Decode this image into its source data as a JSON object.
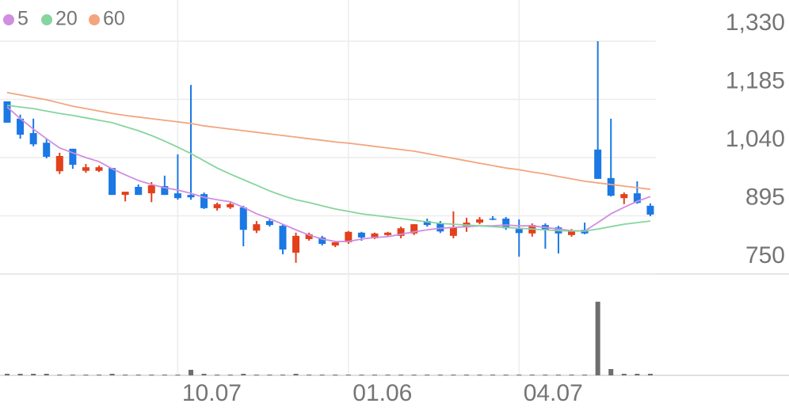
{
  "chart_data": [
    {
      "type": "candlestick",
      "categories": [
        null,
        null,
        null,
        null,
        null,
        null,
        null,
        null,
        null,
        null,
        null,
        null,
        null,
        "10.07",
        null,
        null,
        null,
        null,
        null,
        null,
        null,
        null,
        null,
        null,
        null,
        null,
        "01.06",
        null,
        null,
        null,
        null,
        null,
        null,
        null,
        null,
        null,
        null,
        null,
        null,
        "04.07",
        null,
        null,
        null,
        null,
        null,
        null,
        null,
        null,
        null,
        null
      ],
      "open": [
        1180,
        1137,
        1101,
        1077,
        1006,
        1062,
        1007,
        1007,
        1014,
        947,
        967,
        951,
        969,
        951,
        947,
        949,
        914,
        916,
        916,
        858,
        882,
        870,
        803,
        837,
        841,
        821,
        829,
        853,
        839,
        847,
        845,
        851,
        882,
        876,
        845,
        866,
        878,
        888,
        888,
        862,
        851,
        872,
        866,
        847,
        860,
        1060,
        989,
        939,
        951,
        920
      ],
      "high": [
        1180,
        1147,
        1137,
        1087,
        1052,
        1062,
        1024,
        1020,
        1014,
        955,
        973,
        979,
        995,
        1048,
        1221,
        953,
        928,
        928,
        920,
        882,
        886,
        874,
        853,
        853,
        845,
        831,
        857,
        855,
        853,
        855,
        868,
        874,
        888,
        882,
        906,
        890,
        892,
        894,
        892,
        886,
        876,
        876,
        870,
        862,
        878,
        1330,
        1137,
        953,
        981,
        926
      ],
      "low": [
        1127,
        1087,
        1068,
        1038,
        999,
        1012,
        1002,
        1004,
        947,
        931,
        947,
        929,
        947,
        935,
        935,
        912,
        908,
        912,
        819,
        852,
        868,
        799,
        778,
        833,
        821,
        817,
        825,
        833,
        837,
        845,
        839,
        847,
        868,
        852,
        839,
        855,
        874,
        884,
        860,
        793,
        843,
        813,
        801,
        843,
        849,
        987,
        943,
        924,
        925,
        894
      ],
      "close": [
        1127,
        1097,
        1073,
        1042,
        1044,
        1022,
        1016,
        1016,
        947,
        955,
        947,
        971,
        947,
        939,
        941,
        914,
        924,
        924,
        860,
        874,
        872,
        811,
        845,
        849,
        825,
        829,
        855,
        841,
        851,
        853,
        864,
        874,
        872,
        856,
        866,
        878,
        886,
        886,
        864,
        852,
        872,
        860,
        851,
        858,
        851,
        987,
        945,
        949,
        927,
        898
      ],
      "up_color": "#e2411c",
      "down_color": "#1b78e4",
      "series": [
        {
          "name": "5",
          "color": "#d08ee0",
          "values": [
            1166,
            1137,
            1111,
            1087,
            1064,
            1052,
            1040,
            1030,
            1012,
            997,
            983,
            973,
            965,
            959,
            951,
            941,
            935,
            930,
            916,
            900,
            888,
            874,
            860,
            847,
            837,
            831,
            831,
            837,
            841,
            843,
            849,
            855,
            860,
            864,
            866,
            868,
            870,
            870,
            872,
            870,
            870,
            866,
            862,
            858,
            857,
            878,
            900,
            916,
            931,
            943
          ]
        },
        {
          "name": "20",
          "color": "#86d59e",
          "values": [
            1170,
            1166,
            1162,
            1156,
            1150,
            1145,
            1139,
            1133,
            1127,
            1117,
            1107,
            1095,
            1081,
            1066,
            1050,
            1032,
            1014,
            999,
            985,
            971,
            957,
            945,
            935,
            928,
            920,
            912,
            906,
            900,
            896,
            892,
            888,
            884,
            880,
            876,
            874,
            872,
            870,
            868,
            866,
            864,
            862,
            860,
            858,
            857,
            857,
            862,
            868,
            874,
            878,
            882
          ]
        },
        {
          "name": "60",
          "color": "#f3a57e",
          "values": [
            1202,
            1196,
            1190,
            1184,
            1176,
            1168,
            1162,
            1156,
            1150,
            1145,
            1141,
            1137,
            1133,
            1129,
            1125,
            1119,
            1115,
            1111,
            1107,
            1103,
            1099,
            1095,
            1091,
            1087,
            1083,
            1079,
            1076,
            1072,
            1068,
            1064,
            1060,
            1056,
            1050,
            1044,
            1038,
            1032,
            1026,
            1020,
            1014,
            1010,
            1004,
            999,
            993,
            987,
            981,
            977,
            973,
            969,
            965,
            961
          ]
        }
      ],
      "ylim": [
        750,
        1330
      ],
      "yticks": [
        {
          "value": 1330,
          "label": "1,330"
        },
        {
          "value": 1185,
          "label": "1,185"
        },
        {
          "value": 1040,
          "label": "1,040"
        },
        895,
        750
      ],
      "grid": true
    },
    {
      "type": "bar",
      "values": [
        2,
        2,
        2,
        2,
        1,
        1,
        1,
        1,
        2,
        1,
        1,
        1,
        1,
        1,
        7,
        2,
        1,
        1,
        2,
        1,
        1,
        1,
        2,
        1,
        1,
        1,
        1,
        1,
        1,
        1,
        1,
        1,
        1,
        1,
        1,
        1,
        1,
        1,
        1,
        1,
        1,
        1,
        1,
        1,
        1,
        93,
        8,
        2,
        2,
        2
      ],
      "color": "#6e6e6e",
      "ylim": [
        0,
        100
      ]
    }
  ]
}
